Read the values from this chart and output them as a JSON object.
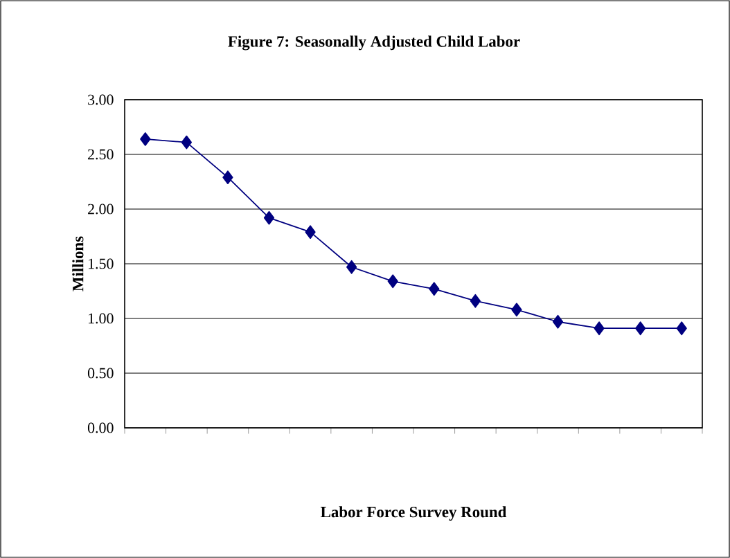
{
  "chart_data": {
    "type": "line",
    "title": "Figure 7:  Seasonally Adjusted Child Labor",
    "xlabel": "Labor Force Survey Round",
    "ylabel": "Millions",
    "categories": [
      null,
      null,
      null,
      null,
      null,
      null,
      null,
      null,
      null,
      null,
      null,
      null,
      null,
      null
    ],
    "series": [
      {
        "color": "#000080",
        "values": [
          2.64,
          2.61,
          2.29,
          1.92,
          1.79,
          1.47,
          1.34,
          1.27,
          1.16,
          1.08,
          0.97,
          0.91,
          0.91,
          0.91
        ]
      }
    ],
    "ylim": [
      0,
      3
    ],
    "yticks": [
      {
        "value": 0,
        "label": "0.00"
      },
      {
        "value": 0.5,
        "label": "0.50"
      },
      {
        "value": 1,
        "label": "1.00"
      },
      {
        "value": 1.5,
        "label": "1.50"
      },
      {
        "value": 2,
        "label": "2.00"
      },
      {
        "value": 2.5,
        "label": "2.50"
      },
      {
        "value": 3,
        "label": "3.00"
      }
    ],
    "grid": "y",
    "marker": "diamond",
    "line_style": "solid"
  }
}
